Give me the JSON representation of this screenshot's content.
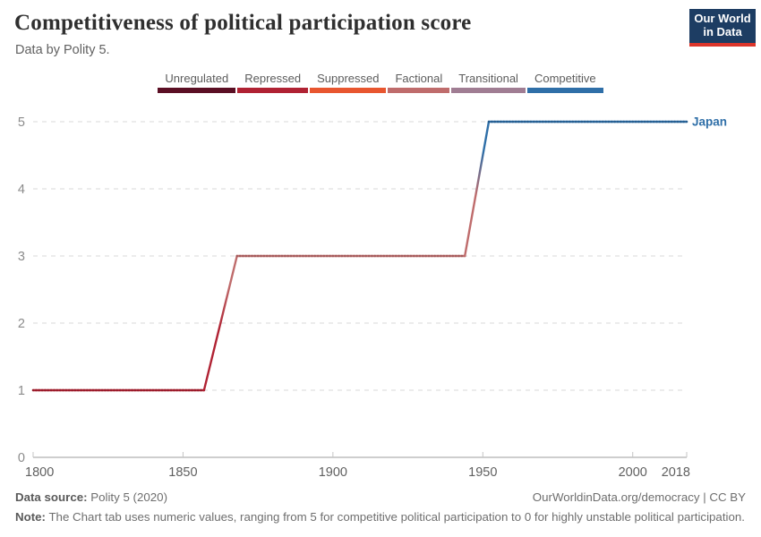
{
  "header": {
    "title": "Competitiveness of political participation score",
    "subtitle": "Data by Polity 5."
  },
  "logo": {
    "line1": "Our World",
    "line2": "in Data",
    "bg_color": "#1d3d63",
    "stripe_color": "#dc352b"
  },
  "legend": {
    "items": [
      {
        "label": "Unregulated",
        "color": "#5b0f24"
      },
      {
        "label": "Repressed",
        "color": "#b02233"
      },
      {
        "label": "Suppressed",
        "color": "#e8562f"
      },
      {
        "label": "Factional",
        "color": "#bf6c6c"
      },
      {
        "label": "Transitional",
        "color": "#a07d93"
      },
      {
        "label": "Competitive",
        "color": "#2f6fa8"
      }
    ]
  },
  "chart_data": {
    "type": "line",
    "title": "Competitiveness of political participation score",
    "entity": "Japan",
    "entity_color": "#2f6fa8",
    "points": [
      [
        1800,
        1
      ],
      [
        1857,
        1
      ],
      [
        1868,
        3
      ],
      [
        1944,
        3
      ],
      [
        1952,
        5
      ],
      [
        2018,
        5
      ]
    ],
    "series": [
      {
        "name": "Japan",
        "note": "score 1 (Repressed) 1800-1857, rises to 3 (Factional) by 1868, holds 3 until 1944, rises to 5 (Competitive) by 1952, holds 5 through 2018"
      }
    ],
    "x_ticks": [
      1800,
      1850,
      1900,
      1950,
      2000,
      2018
    ],
    "y_ticks": [
      0,
      1,
      2,
      3,
      4,
      5
    ],
    "xlim": [
      1800,
      2018
    ],
    "ylim": [
      0,
      5
    ],
    "grid": "horizontal dashed",
    "value_category_labels": [
      "Unregulated",
      "Repressed",
      "Suppressed",
      "Factional",
      "Transitional",
      "Competitive"
    ],
    "xlabel": "",
    "ylabel": ""
  },
  "footer": {
    "datasource_label": "Data source:",
    "datasource_value": " Polity 5 (2020)",
    "right_text": "OurWorldinData.org/democracy | CC BY",
    "note_label": "Note:",
    "note_text": " The Chart tab uses numeric values, ranging from 5 for competitive political participation to 0 for highly unstable political participation."
  }
}
